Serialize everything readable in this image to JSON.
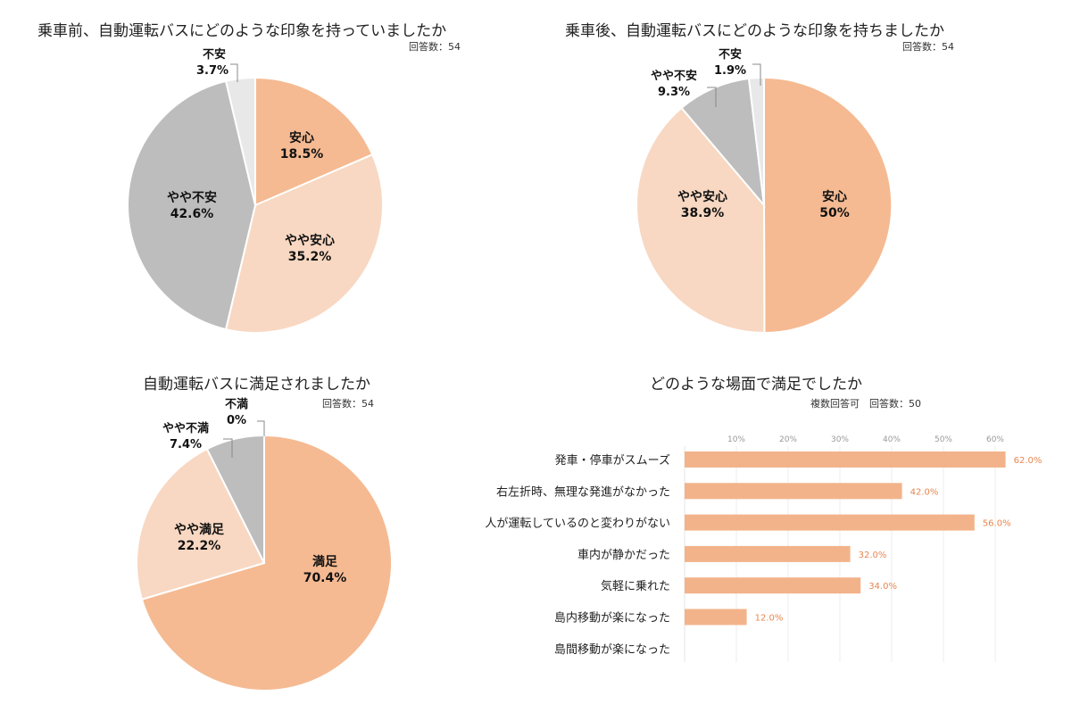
{
  "colors": {
    "c1": "#F5BA92",
    "c2": "#F8D8C2",
    "c3": "#BDBDBD",
    "c4": "#E8E8E8",
    "bar": "#F3B38A",
    "value_label": "#E8874F"
  },
  "chart_data": [
    {
      "type": "pie",
      "title": "乗車前、自動運転バスにどのような印象を持っていましたか",
      "note": "回答数：54",
      "labels": [
        "安心",
        "やや安心",
        "やや不安",
        "不安"
      ],
      "values": [
        18.5,
        35.2,
        42.6,
        3.7
      ],
      "value_labels": [
        "18.5%",
        "35.2%",
        "42.6%",
        "3.7%"
      ]
    },
    {
      "type": "pie",
      "title": "乗車後、自動運転バスにどのような印象を持ちましたか",
      "note": "回答数：54",
      "labels": [
        "安心",
        "やや安心",
        "やや不安",
        "不安"
      ],
      "values": [
        50,
        38.9,
        9.3,
        1.9
      ],
      "value_labels": [
        "50%",
        "38.9%",
        "9.3%",
        "1.9%"
      ]
    },
    {
      "type": "pie",
      "title": "自動運転バスに満足されましたか",
      "note": "回答数：54",
      "labels": [
        "満足",
        "やや満足",
        "やや不満",
        "不満"
      ],
      "values": [
        70.4,
        22.2,
        7.4,
        0
      ],
      "value_labels": [
        "70.4%",
        "22.2%",
        "7.4%",
        "0%"
      ]
    },
    {
      "type": "bar",
      "orientation": "horizontal",
      "title": "どのような場面で満足でしたか",
      "note": "複数回答可　回答数：50",
      "categories": [
        "発車・停車がスムーズ",
        "右左折時、無理な発進がなかった",
        "人が運転しているのと変わりがない",
        "車内が静かだった",
        "気軽に乗れた",
        "島内移動が楽になった",
        "島間移動が楽になった"
      ],
      "values": [
        62,
        42,
        56,
        32,
        34,
        12,
        null
      ],
      "value_labels": [
        "62.0%",
        "42.0%",
        "56.0%",
        "32.0%",
        "34.0%",
        "12.0%",
        ""
      ],
      "ticks": [
        10,
        20,
        30,
        40,
        50,
        60
      ],
      "tick_labels": [
        "10%",
        "20%",
        "30%",
        "40%",
        "50%",
        "60%"
      ],
      "xlim": [
        0,
        65
      ],
      "grid": true
    }
  ]
}
